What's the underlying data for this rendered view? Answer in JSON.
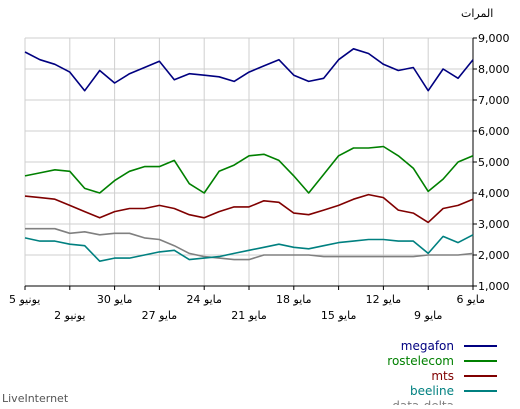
{
  "chart_data": {
    "type": "line",
    "ylabel": "المرات",
    "ylim": [
      1000,
      9000
    ],
    "y_ticks": [
      "1,000",
      "2,000",
      "3,000",
      "4,000",
      "5,000",
      "6,000",
      "7,000",
      "8,000",
      "9,000"
    ],
    "grid": true,
    "x_ticks_upper": [
      "5 يونيو",
      "30 مايو",
      "24 مايو",
      "18 مايو",
      "12 مايو",
      "6 مايو"
    ],
    "x_ticks_lower": [
      "2 يونيو",
      "27 مايو",
      "21 مايو",
      "15 مايو",
      "9 مايو"
    ],
    "legend_position": "bottom-right",
    "footer": "LiveInternet",
    "series": [
      {
        "name": "megafon",
        "color": "#000080",
        "values": [
          8550,
          8300,
          8150,
          7900,
          7300,
          7950,
          7550,
          7850,
          8050,
          8250,
          7650,
          7850,
          7800,
          7750,
          7600,
          7900,
          8100,
          8300,
          7800,
          7600,
          7700,
          8300,
          8650,
          8500,
          8150,
          7950,
          8050,
          7300,
          8000,
          7700,
          8300
        ]
      },
      {
        "name": "rostelecom",
        "color": "#008000",
        "values": [
          4550,
          4650,
          4750,
          4700,
          4150,
          4000,
          4400,
          4700,
          4850,
          4850,
          5050,
          4300,
          4000,
          4700,
          4900,
          5200,
          5250,
          5050,
          4550,
          4000,
          4600,
          5200,
          5450,
          5450,
          5500,
          5200,
          4800,
          4050,
          4450,
          5000,
          5200
        ]
      },
      {
        "name": "mts",
        "color": "#800000",
        "values": [
          3900,
          3850,
          3800,
          3600,
          3400,
          3200,
          3400,
          3500,
          3500,
          3600,
          3500,
          3300,
          3200,
          3400,
          3550,
          3550,
          3750,
          3700,
          3350,
          3300,
          3450,
          3600,
          3800,
          3950,
          3850,
          3450,
          3350,
          3050,
          3500,
          3600,
          3800
        ]
      },
      {
        "name": "beeline",
        "color": "#008080",
        "values": [
          2550,
          2450,
          2450,
          2350,
          2300,
          1800,
          1900,
          1900,
          2000,
          2100,
          2150,
          1850,
          1900,
          1950,
          2050,
          2150,
          2250,
          2350,
          2250,
          2200,
          2300,
          2400,
          2450,
          2500,
          2500,
          2450,
          2450,
          2050,
          2600,
          2400,
          2650
        ]
      },
      {
        "name": "data-delta",
        "color": "#808080",
        "values": [
          2850,
          2850,
          2850,
          2700,
          2750,
          2650,
          2700,
          2700,
          2550,
          2500,
          2300,
          2050,
          1950,
          1900,
          1850,
          1850,
          2000,
          2000,
          2000,
          2000,
          1950,
          1950,
          1950,
          1950,
          1950,
          1950,
          1950,
          2000,
          2000,
          2000,
          2050
        ]
      }
    ]
  }
}
